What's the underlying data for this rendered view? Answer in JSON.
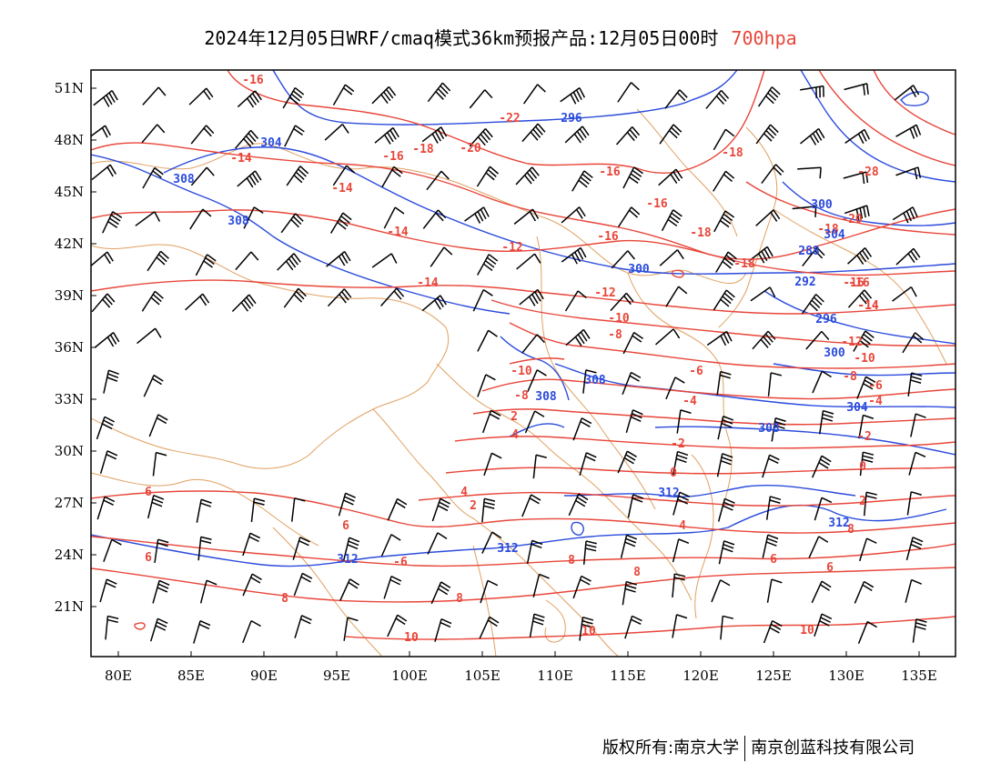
{
  "title": {
    "main": "2024年12月05日WRF/cmaq模式36km预报产品:12月05日00时",
    "level": "700hpa"
  },
  "axes": {
    "lon_labels": [
      "80E",
      "85E",
      "90E",
      "95E",
      "100E",
      "105E",
      "110E",
      "115E",
      "120E",
      "125E",
      "130E",
      "135E"
    ],
    "lat_labels": [
      "51N",
      "48N",
      "45N",
      "42N",
      "39N",
      "36N",
      "33N",
      "30N",
      "27N",
      "24N",
      "21N"
    ]
  },
  "colors": {
    "temperature": "#e8463a",
    "height": "#2b4bdc",
    "boundary": "#e0a060",
    "wind": "#000000"
  },
  "temperature_labels": [
    "-16",
    "-22",
    "-14",
    "-16",
    "-18",
    "-20",
    "-14",
    "-14",
    "-12",
    "-14",
    "-16",
    "-16",
    "-18",
    "-18",
    "-18",
    "-20",
    "-16",
    "-14",
    "-12",
    "-10",
    "-8",
    "-10",
    "-8",
    "-6",
    "-4",
    "-2",
    "0",
    "2",
    "4",
    "4",
    "6",
    "6",
    "6",
    "8",
    "8",
    "8",
    "10",
    "10",
    "-28",
    "-18",
    "-16",
    "-14",
    "-12",
    "-10",
    "-8",
    "-6",
    "-4",
    "-2",
    "0",
    "2",
    "4",
    "-16",
    "2",
    "-6",
    "8",
    "6",
    "10",
    "6",
    "8"
  ],
  "height_labels": [
    "296",
    "304",
    "308",
    "308",
    "300",
    "300",
    "288",
    "292",
    "296",
    "300",
    "304",
    "308",
    "308",
    "308",
    "312",
    "312",
    "312",
    "312",
    "304"
  ],
  "footer": {
    "left": "版权所有:南京大学",
    "right": "南京创蓝科技有限公司"
  }
}
